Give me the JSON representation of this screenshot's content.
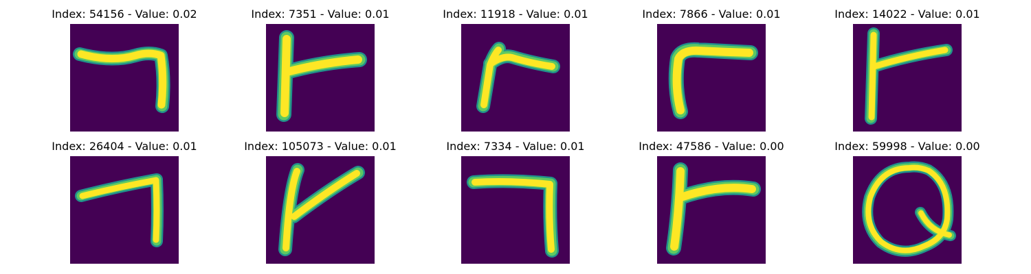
{
  "colors": {
    "background": "#440154",
    "stroke_core": "#fde725",
    "stroke_mid": "#5ec962",
    "stroke_edge": "#21918c"
  },
  "panels": [
    {
      "title": "Index: 54156 - Value: 0.02",
      "glyph": "digit-seven-sample"
    },
    {
      "title": "Index: 7351 - Value: 0.01",
      "glyph": "tee-sample"
    },
    {
      "title": "Index: 11918 - Value: 0.01",
      "glyph": "bent-stroke-sample"
    },
    {
      "title": "Index: 7866 - Value: 0.01",
      "glyph": "gamma-sample"
    },
    {
      "title": "Index: 14022 - Value: 0.01",
      "glyph": "tee-sample"
    },
    {
      "title": "Index: 26404 - Value: 0.01",
      "glyph": "digit-seven-sample"
    },
    {
      "title": "Index: 105073 - Value: 0.01",
      "glyph": "tee-sample"
    },
    {
      "title": "Index: 7334 - Value: 0.01",
      "glyph": "digit-seven-sample"
    },
    {
      "title": "Index: 47586 - Value: 0.00",
      "glyph": "tee-sample"
    },
    {
      "title": "Index: 59998 - Value: 0.00",
      "glyph": "loop-sample"
    }
  ]
}
